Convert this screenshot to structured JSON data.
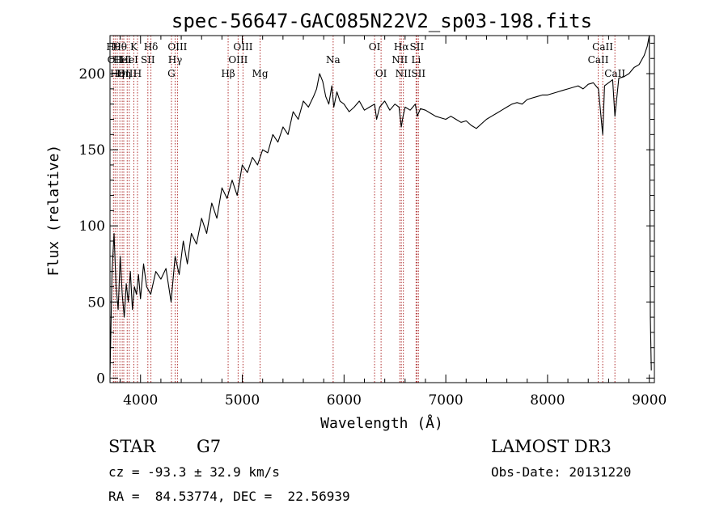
{
  "chart_data": {
    "type": "line",
    "title": "spec-56647-GAC085N22V2_sp03-198.fits",
    "xlabel": "Wavelength (Å)",
    "ylabel": "Flux (relative)",
    "xlim": [
      3700,
      9050
    ],
    "ylim": [
      -3,
      225
    ],
    "xticks": [
      4000,
      5000,
      6000,
      7000,
      8000,
      9000
    ],
    "yticks": [
      0,
      50,
      100,
      150,
      200
    ],
    "grid": false,
    "series": [
      {
        "name": "flux",
        "x": [
          3700,
          3720,
          3740,
          3760,
          3780,
          3800,
          3820,
          3840,
          3860,
          3880,
          3900,
          3920,
          3940,
          3960,
          3980,
          4000,
          4030,
          4060,
          4100,
          4150,
          4200,
          4250,
          4300,
          4340,
          4380,
          4420,
          4460,
          4500,
          4550,
          4600,
          4650,
          4700,
          4750,
          4800,
          4850,
          4900,
          4950,
          5000,
          5050,
          5100,
          5150,
          5200,
          5250,
          5300,
          5350,
          5400,
          5450,
          5500,
          5550,
          5600,
          5650,
          5700,
          5730,
          5760,
          5790,
          5820,
          5850,
          5880,
          5900,
          5930,
          5960,
          6000,
          6050,
          6100,
          6150,
          6200,
          6250,
          6300,
          6320,
          6350,
          6400,
          6450,
          6500,
          6540,
          6563,
          6580,
          6600,
          6650,
          6700,
          6720,
          6750,
          6800,
          6850,
          6900,
          6950,
          7000,
          7050,
          7100,
          7150,
          7200,
          7250,
          7300,
          7350,
          7400,
          7450,
          7500,
          7550,
          7600,
          7650,
          7700,
          7750,
          7800,
          7850,
          7900,
          7950,
          8000,
          8050,
          8100,
          8150,
          8200,
          8250,
          8300,
          8350,
          8400,
          8450,
          8500,
          8542,
          8560,
          8600,
          8640,
          8662,
          8700,
          8750,
          8800,
          8850,
          8900,
          8950,
          8980,
          9000,
          9010,
          9020
        ],
        "values": [
          2,
          70,
          95,
          60,
          45,
          80,
          55,
          40,
          62,
          50,
          70,
          45,
          60,
          55,
          68,
          52,
          75,
          60,
          55,
          70,
          65,
          72,
          50,
          80,
          68,
          90,
          75,
          95,
          88,
          105,
          95,
          115,
          105,
          125,
          118,
          130,
          120,
          140,
          135,
          145,
          140,
          150,
          148,
          160,
          155,
          165,
          160,
          175,
          170,
          182,
          178,
          185,
          190,
          200,
          195,
          185,
          180,
          192,
          178,
          188,
          182,
          180,
          175,
          178,
          182,
          176,
          178,
          180,
          170,
          178,
          182,
          176,
          180,
          178,
          165,
          172,
          178,
          176,
          180,
          172,
          177,
          176,
          174,
          172,
          171,
          170,
          172,
          170,
          168,
          169,
          166,
          164,
          167,
          170,
          172,
          174,
          176,
          178,
          180,
          181,
          180,
          183,
          184,
          185,
          186,
          186,
          187,
          188,
          189,
          190,
          191,
          192,
          190,
          193,
          194,
          190,
          160,
          192,
          194,
          196,
          172,
          197,
          198,
          200,
          204,
          206,
          212,
          218,
          225,
          40,
          5
        ]
      }
    ],
    "lines": [
      {
        "x": 3734,
        "label": "Hθ",
        "row": 0
      },
      {
        "x": 3750,
        "label": "OII",
        "row": 1
      },
      {
        "x": 3771,
        "label": "Hη",
        "row": 2
      },
      {
        "x": 3797,
        "label": "Hθ",
        "row": 0
      },
      {
        "x": 3820,
        "label": "HeI",
        "row": 1
      },
      {
        "x": 3835,
        "label": "Hη",
        "row": 2
      },
      {
        "x": 3869,
        "label": "OIII",
        "row": 2
      },
      {
        "x": 3889,
        "label": "HeI",
        "row": 1
      },
      {
        "x": 3934,
        "label": "K",
        "row": 0
      },
      {
        "x": 3970,
        "label": "H",
        "row": 2
      },
      {
        "x": 4072,
        "label": "SII",
        "row": 1
      },
      {
        "x": 4102,
        "label": "Hδ",
        "row": 0
      },
      {
        "x": 4304,
        "label": "G",
        "row": 2
      },
      {
        "x": 4340,
        "label": "Hγ",
        "row": 1
      },
      {
        "x": 4363,
        "label": "OIII",
        "row": 0
      },
      {
        "x": 4861,
        "label": "Hβ",
        "row": 2
      },
      {
        "x": 4959,
        "label": "OIII",
        "row": 1
      },
      {
        "x": 5007,
        "label": "OIII",
        "row": 0
      },
      {
        "x": 5175,
        "label": "Mg",
        "row": 2
      },
      {
        "x": 5893,
        "label": "Na",
        "row": 1
      },
      {
        "x": 6300,
        "label": "OI",
        "row": 0
      },
      {
        "x": 6364,
        "label": "OI",
        "row": 2
      },
      {
        "x": 6548,
        "label": "NII",
        "row": 1
      },
      {
        "x": 6563,
        "label": "Hα",
        "row": 0
      },
      {
        "x": 6583,
        "label": "NII",
        "row": 2
      },
      {
        "x": 6708,
        "label": "Li",
        "row": 1
      },
      {
        "x": 6716,
        "label": "SII",
        "row": 0
      },
      {
        "x": 6731,
        "label": "SII",
        "row": 2
      },
      {
        "x": 8498,
        "label": "CaII",
        "row": 1
      },
      {
        "x": 8542,
        "label": "CaII",
        "row": 0
      },
      {
        "x": 8662,
        "label": "CaII",
        "row": 2
      }
    ]
  },
  "info": {
    "object_class": "STAR",
    "subclass": "G7",
    "survey": "LAMOST DR3",
    "redshift": "cz = -93.3 ± 32.9 km/s",
    "obs_date": "Obs-Date: 20131220",
    "coords": "RA =  84.53774, DEC =  22.56939"
  },
  "colors": {
    "line": "#000000",
    "marker": "#b03030"
  }
}
